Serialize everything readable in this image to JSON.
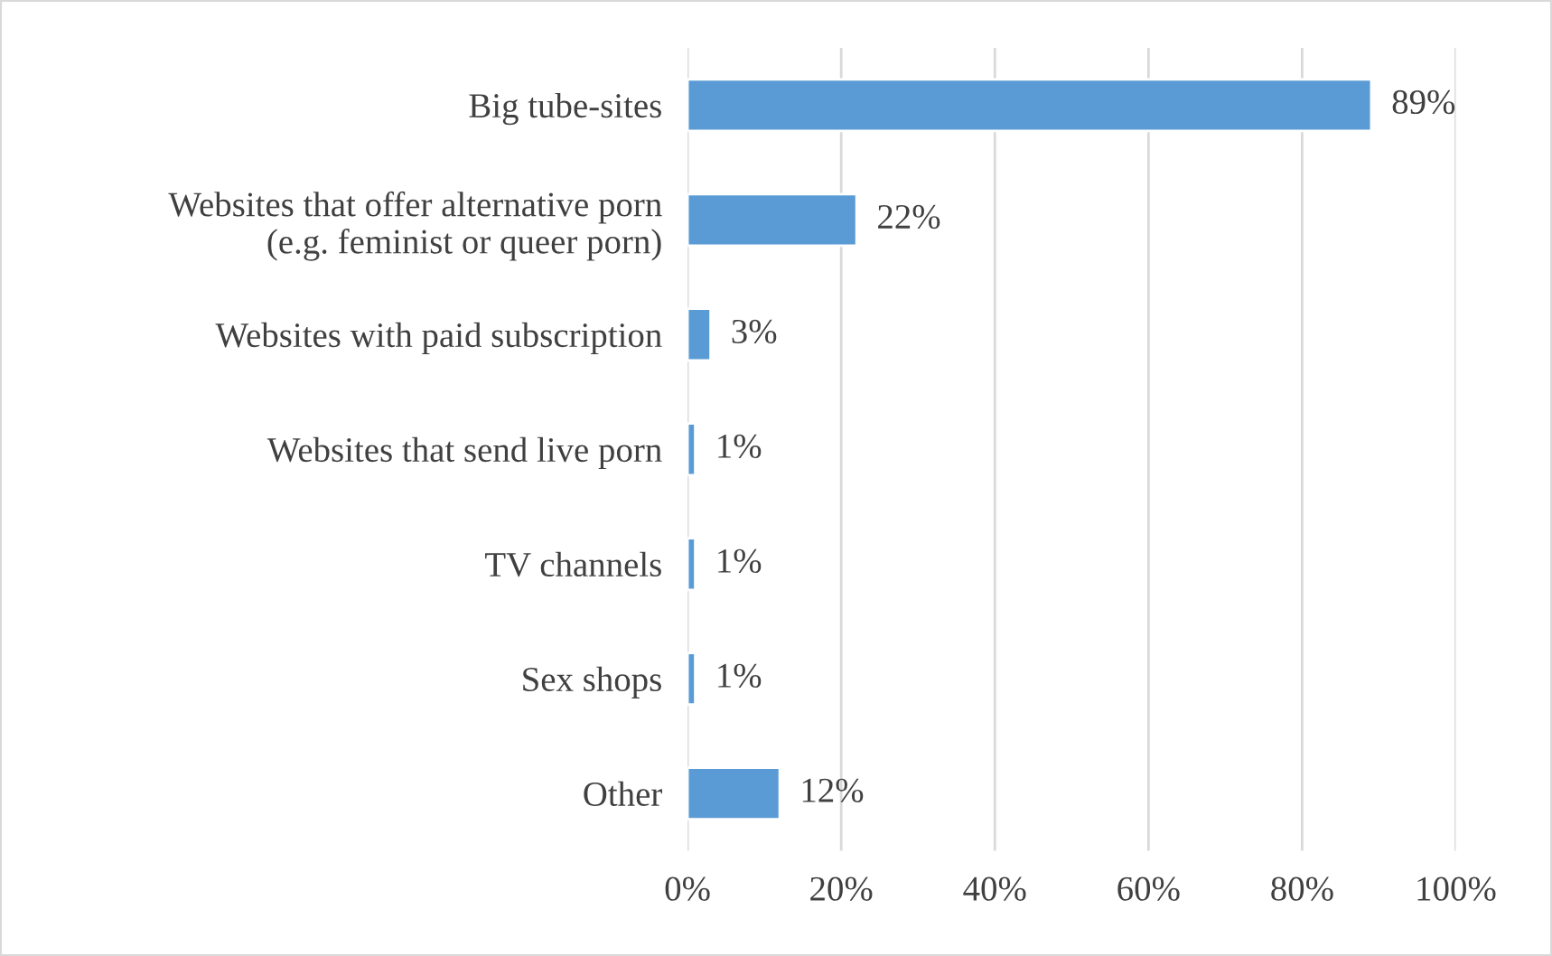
{
  "chart_data": {
    "type": "bar",
    "orientation": "horizontal",
    "categories": [
      "Big tube-sites",
      "Websites that offer alternative porn\n(e.g. feminist or queer porn)",
      "Websites with paid subscription",
      "Websites that send live porn",
      "TV channels",
      "Sex shops",
      "Other"
    ],
    "values": [
      89,
      22,
      3,
      1,
      1,
      1,
      12
    ],
    "value_labels": [
      "89%",
      "22%",
      "3%",
      "1%",
      "1%",
      "1%",
      "12%"
    ],
    "color": "#5b9bd5",
    "xlim": [
      0,
      100
    ],
    "xticks": [
      {
        "value": 0,
        "label": "0%"
      },
      {
        "value": 20,
        "label": "20%"
      },
      {
        "value": 40,
        "label": "40%"
      },
      {
        "value": 60,
        "label": "60%"
      },
      {
        "value": 80,
        "label": "80%"
      },
      {
        "value": 100,
        "label": "100%"
      }
    ],
    "grid": "x"
  }
}
